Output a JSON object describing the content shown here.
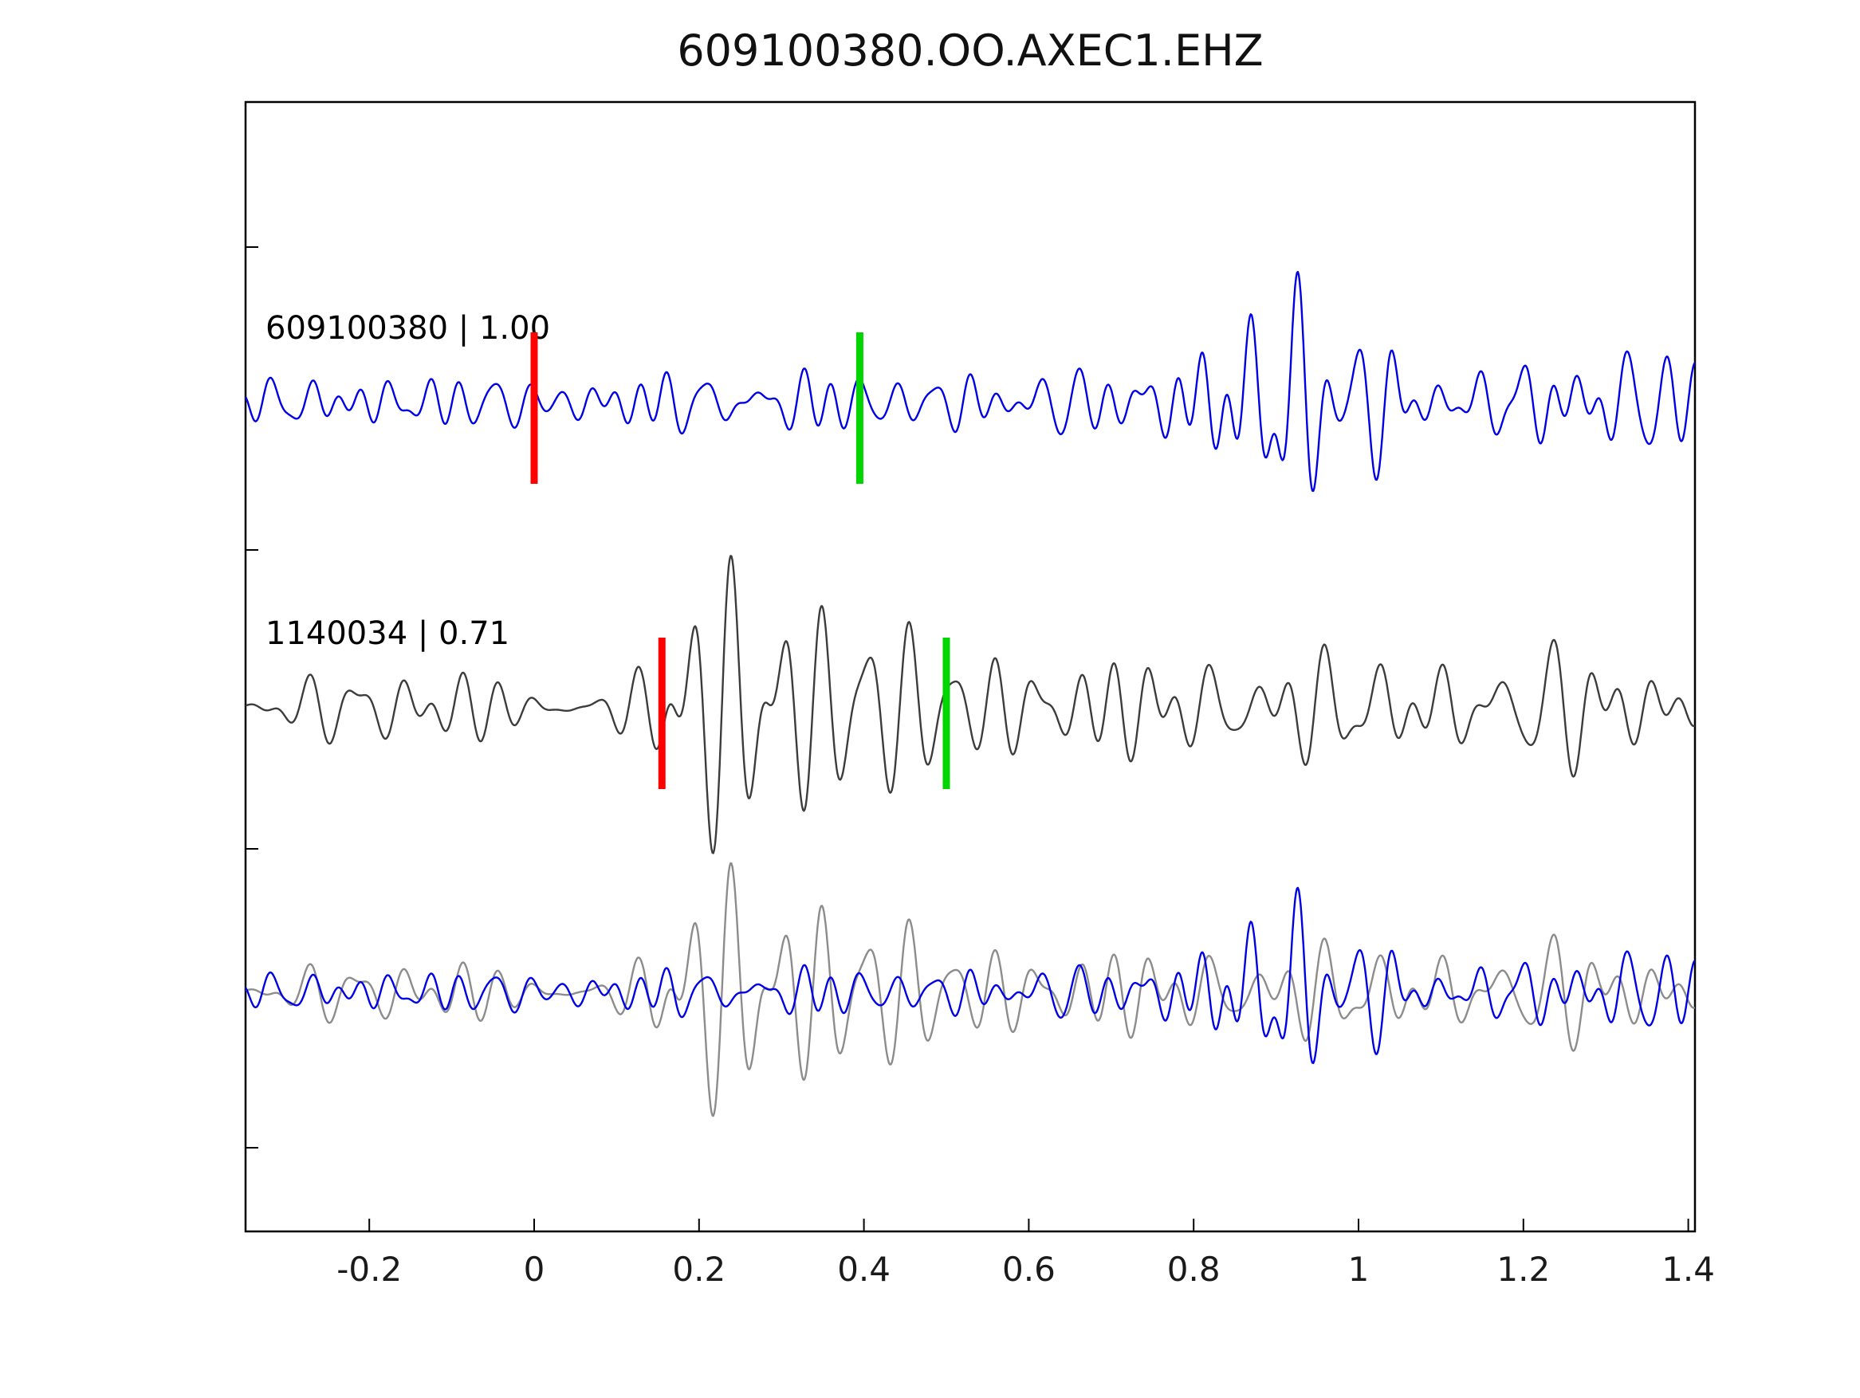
{
  "figure": {
    "title": "609100380.OO.AXEC1.EHZ",
    "background": "#ffffff"
  },
  "chart_data": {
    "type": "line",
    "subtype": "seismic-waveform-cross-correlation",
    "title": "609100380.OO.AXEC1.EHZ",
    "xlabel": "",
    "ylabel": "",
    "xlim": [
      -0.35,
      1.408
    ],
    "xticks": [
      -0.2,
      0,
      0.2,
      0.4,
      0.6,
      0.8,
      1,
      1.2,
      1.4
    ],
    "xtick_labels": [
      "-0.2",
      "0",
      "0.2",
      "0.4",
      "0.6",
      "0.8",
      "1",
      "1.2",
      "1.4"
    ],
    "grid": false,
    "legend_position": "none",
    "axis_color": "#000000",
    "pick_colors": {
      "red": "#ff0000",
      "green": "#00d500"
    },
    "traces": [
      {
        "id": "609100380",
        "label": "609100380 | 1.00",
        "event_id": "609100380",
        "correlation": 1.0,
        "color": "#0000e6",
        "row": 0,
        "picks": {
          "red": 0.0,
          "green": 0.395
        },
        "waveform": {
          "seed": 7,
          "components": 16,
          "freq_min": 15,
          "freq_max": 36,
          "envelope": [
            [
              -0.35,
              0.9
            ],
            [
              0.5,
              0.9
            ],
            [
              0.66,
              1.1
            ],
            [
              0.75,
              1.5
            ],
            [
              0.84,
              2.5
            ],
            [
              0.92,
              4.0
            ],
            [
              0.99,
              3.2
            ],
            [
              1.07,
              2.2
            ],
            [
              1.18,
              1.8
            ],
            [
              1.4,
              1.6
            ]
          ]
        }
      },
      {
        "id": "1140034",
        "label": "1140034 | 0.71",
        "event_id": "1140034",
        "correlation": 0.71,
        "color": "#3c3c3c",
        "row": 1,
        "picks": {
          "red": 0.155,
          "green": 0.5
        },
        "waveform": {
          "seed": 13,
          "components": 16,
          "freq_min": 13,
          "freq_max": 30,
          "envelope": [
            [
              -0.35,
              1.05
            ],
            [
              0.08,
              1.05
            ],
            [
              0.13,
              2.0
            ],
            [
              0.17,
              3.6
            ],
            [
              0.23,
              4.6
            ],
            [
              0.3,
              4.2
            ],
            [
              0.38,
              4.4
            ],
            [
              0.46,
              3.3
            ],
            [
              0.55,
              2.4
            ],
            [
              0.7,
              2.2
            ],
            [
              0.9,
              2.0
            ],
            [
              1.1,
              1.8
            ],
            [
              1.25,
              1.9
            ],
            [
              1.4,
              1.6
            ]
          ]
        }
      },
      {
        "id": "overlay",
        "label": "",
        "row": 2,
        "components": [
          {
            "ref": "1140034",
            "color": "#8c8c8c",
            "scale": 0.85
          },
          {
            "ref": "609100380",
            "color": "#0000e6",
            "scale": 0.8
          }
        ]
      }
    ]
  }
}
